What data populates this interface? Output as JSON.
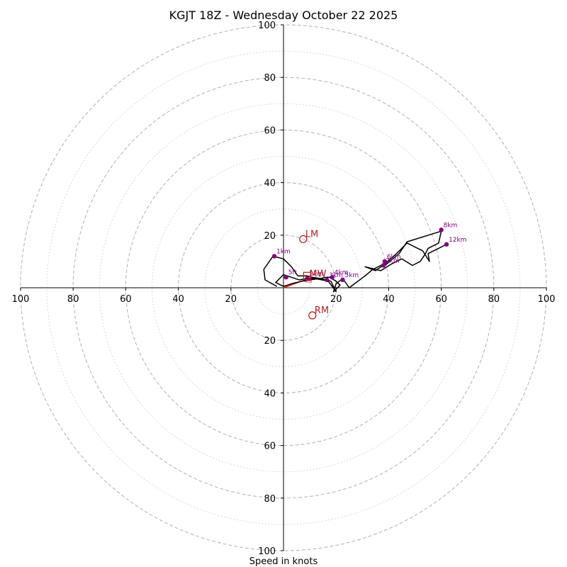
{
  "chart_data": {
    "type": "hodograph",
    "title": "KGJT 18Z - Wednesday October 22 2025",
    "xlabel": "Speed in knots",
    "max_speed": 100,
    "major_rings": [
      20,
      40,
      60,
      80,
      100
    ],
    "minor_rings": [
      10,
      30,
      50,
      70,
      90
    ],
    "tick_labels": [
      "100",
      "80",
      "60",
      "40",
      "20",
      "0",
      "20",
      "40",
      "60",
      "80",
      "100"
    ],
    "hodograph_trace": [
      [
        -2.5,
        0.5
      ],
      [
        -7,
        3
      ],
      [
        -7.5,
        7
      ],
      [
        -4,
        12
      ],
      [
        0,
        11
      ],
      [
        3,
        8
      ],
      [
        5.5,
        4.5
      ],
      [
        9,
        4.5
      ],
      [
        11,
        4
      ],
      [
        14,
        3.5
      ],
      [
        18,
        2.5
      ],
      [
        20,
        -1.5
      ],
      [
        17,
        2.5
      ],
      [
        12,
        3.5
      ],
      [
        9,
        3.5
      ],
      [
        6,
        3
      ],
      [
        0,
        5
      ],
      [
        -3,
        2
      ],
      [
        0,
        0.5
      ],
      [
        3,
        1.5
      ],
      [
        7,
        2.5
      ],
      [
        10,
        3
      ],
      [
        14,
        3.5
      ],
      [
        16,
        4
      ],
      [
        17.5,
        4
      ],
      [
        20,
        2.5
      ],
      [
        21.5,
        1
      ],
      [
        19,
        -1.5
      ],
      [
        20,
        1.5
      ],
      [
        22.5,
        3.5
      ],
      [
        25,
        0
      ],
      [
        27,
        1.5
      ],
      [
        31,
        4.5
      ],
      [
        34,
        7
      ],
      [
        37,
        8.5
      ],
      [
        38.5,
        9.5
      ],
      [
        38,
        8
      ],
      [
        41,
        10.5
      ],
      [
        44,
        13
      ],
      [
        47,
        17.5
      ],
      [
        60,
        21.5
      ],
      [
        59,
        17
      ],
      [
        55,
        15
      ],
      [
        54,
        13
      ],
      [
        52,
        10
      ],
      [
        49,
        8.5
      ],
      [
        45,
        11
      ],
      [
        41,
        9
      ],
      [
        37,
        6.5
      ],
      [
        31,
        8
      ],
      [
        35,
        6.5
      ],
      [
        38.5,
        9
      ],
      [
        43,
        13
      ],
      [
        47,
        17
      ],
      [
        53,
        14
      ],
      [
        55.5,
        10
      ],
      [
        55,
        13
      ],
      [
        58,
        14.5
      ],
      [
        62,
        16.5
      ]
    ],
    "height_markers": [
      {
        "label": "1km",
        "u": -3.5,
        "v": 12
      },
      {
        "label": "5ft",
        "u": 1,
        "v": 4
      },
      {
        "label": "2km",
        "u": 9,
        "v": 3.5
      },
      {
        "label": "3km",
        "u": 16.5,
        "v": 3
      },
      {
        "label": "4km",
        "u": 18.5,
        "v": 4
      },
      {
        "label": "5km",
        "u": 22.5,
        "v": 3
      },
      {
        "label": "6km",
        "u": 38.5,
        "v": 10
      },
      {
        "label": "7km",
        "u": 38,
        "v": 8.5
      },
      {
        "label": "8km",
        "u": 60,
        "v": 22
      },
      {
        "label": "12km",
        "u": 62,
        "v": 16.5
      }
    ],
    "storm_motions": [
      {
        "label": "LM",
        "u": 7.5,
        "v": 18.5
      },
      {
        "label": "RM",
        "u": 11,
        "v": -10.5
      }
    ],
    "mean_wind": {
      "label": "MW",
      "u": 9,
      "v": 4.5
    },
    "shear_vector": {
      "from": [
        0,
        0
      ],
      "to": [
        11,
        4
      ]
    },
    "arrow_label": "4t6"
  }
}
